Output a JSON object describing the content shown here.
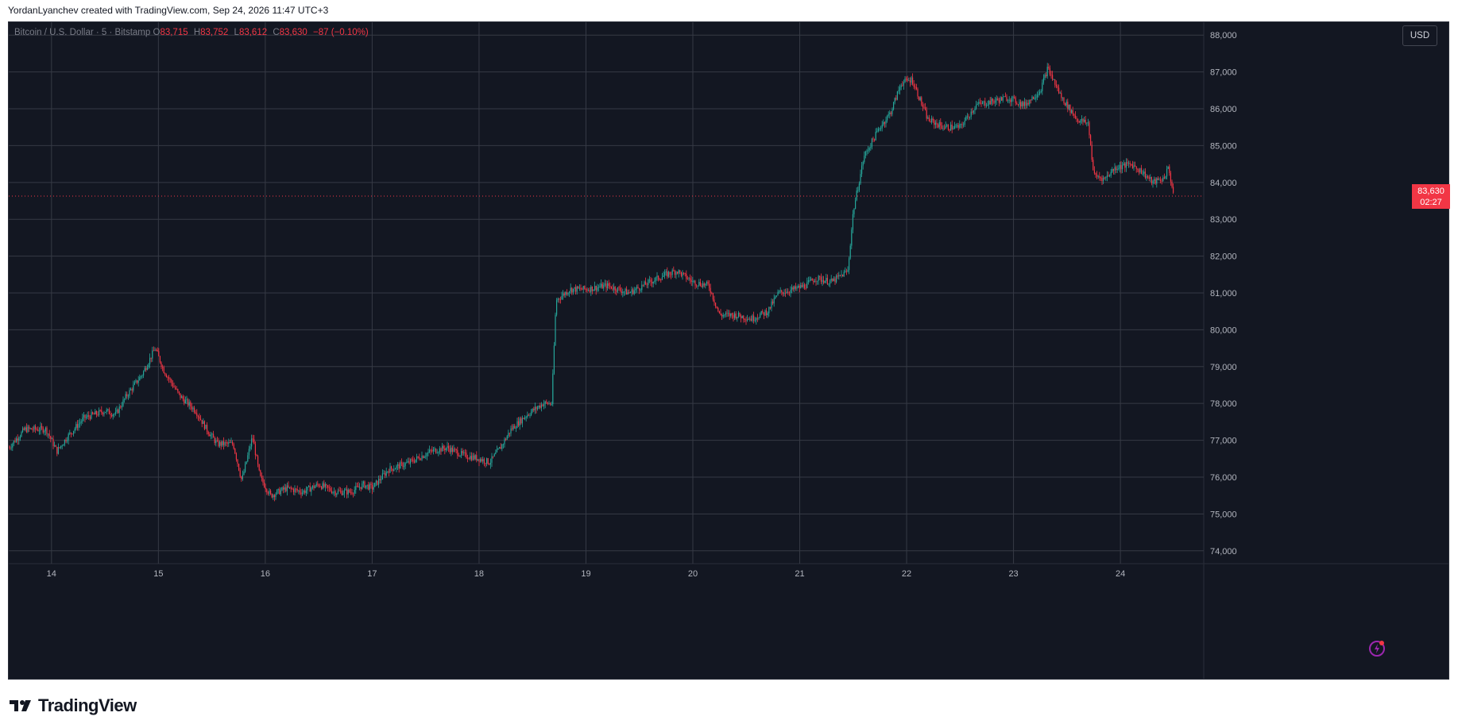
{
  "header": {
    "attribution": "YordanLyanchev created with TradingView.com, Sep 24, 2026 11:47 UTC+3"
  },
  "legend": {
    "symbol": "Bitcoin / U.S. Dollar · 5 · Bitstamp",
    "o_label": "O",
    "o_value": "83,715",
    "h_label": "H",
    "h_value": "83,752",
    "l_label": "L",
    "l_value": "83,612",
    "c_label": "C",
    "c_value": "83,630",
    "change": "−87 (−0.10%)"
  },
  "toolbar": {
    "currency_button": "USD"
  },
  "last_price": {
    "price": "83,630",
    "countdown": "02:27"
  },
  "footer": {
    "brand": "TradingView"
  },
  "icons": {
    "replay": "lightning-icon"
  },
  "colors": {
    "background": "#131722",
    "grid": "#363a45",
    "up": "#26a69a",
    "down": "#f23645",
    "axis_text": "#b2b5be"
  },
  "chart_data": {
    "type": "candlestick",
    "timeframe": "5",
    "exchange": "Bitstamp",
    "x_ticks": [
      "14",
      "15",
      "16",
      "17",
      "18",
      "19",
      "20",
      "21",
      "22",
      "23",
      "24"
    ],
    "y_ticks": [
      "74,000",
      "75,000",
      "76,000",
      "77,000",
      "78,000",
      "79,000",
      "80,000",
      "81,000",
      "82,000",
      "83,000",
      "84,000",
      "85,000",
      "86,000",
      "87,000",
      "88,000"
    ],
    "ylim": [
      73650,
      88350
    ],
    "xlim_days": [
      13.6,
      24.75
    ],
    "grid": true,
    "last_price_value": 83630,
    "price_path": [
      [
        13.6,
        76800
      ],
      [
        13.75,
        77300
      ],
      [
        13.95,
        77300
      ],
      [
        14.05,
        76700
      ],
      [
        14.15,
        77100
      ],
      [
        14.3,
        77600
      ],
      [
        14.5,
        77800
      ],
      [
        14.6,
        77700
      ],
      [
        14.7,
        78200
      ],
      [
        14.85,
        78800
      ],
      [
        14.97,
        79500
      ],
      [
        15.05,
        78900
      ],
      [
        15.2,
        78200
      ],
      [
        15.35,
        77800
      ],
      [
        15.45,
        77300
      ],
      [
        15.55,
        76900
      ],
      [
        15.7,
        76900
      ],
      [
        15.78,
        75900
      ],
      [
        15.88,
        77100
      ],
      [
        15.95,
        76000
      ],
      [
        16.05,
        75500
      ],
      [
        16.2,
        75700
      ],
      [
        16.35,
        75600
      ],
      [
        16.5,
        75800
      ],
      [
        16.65,
        75600
      ],
      [
        16.8,
        75600
      ],
      [
        16.92,
        75800
      ],
      [
        17.0,
        75700
      ],
      [
        17.15,
        76200
      ],
      [
        17.35,
        76400
      ],
      [
        17.55,
        76700
      ],
      [
        17.7,
        76800
      ],
      [
        17.85,
        76600
      ],
      [
        18.0,
        76500
      ],
      [
        18.1,
        76400
      ],
      [
        18.2,
        76800
      ],
      [
        18.3,
        77300
      ],
      [
        18.45,
        77700
      ],
      [
        18.6,
        78000
      ],
      [
        18.68,
        78000
      ],
      [
        18.72,
        80800
      ],
      [
        18.85,
        81100
      ],
      [
        19.0,
        81100
      ],
      [
        19.2,
        81200
      ],
      [
        19.4,
        81000
      ],
      [
        19.6,
        81300
      ],
      [
        19.75,
        81500
      ],
      [
        19.85,
        81600
      ],
      [
        20.0,
        81300
      ],
      [
        20.15,
        81200
      ],
      [
        20.25,
        80400
      ],
      [
        20.4,
        80400
      ],
      [
        20.55,
        80300
      ],
      [
        20.7,
        80500
      ],
      [
        20.8,
        81000
      ],
      [
        20.95,
        81100
      ],
      [
        21.05,
        81200
      ],
      [
        21.15,
        81400
      ],
      [
        21.3,
        81300
      ],
      [
        21.45,
        81600
      ],
      [
        21.5,
        83200
      ],
      [
        21.6,
        84700
      ],
      [
        21.75,
        85500
      ],
      [
        21.85,
        85900
      ],
      [
        21.95,
        86700
      ],
      [
        22.05,
        86800
      ],
      [
        22.2,
        85700
      ],
      [
        22.35,
        85500
      ],
      [
        22.5,
        85500
      ],
      [
        22.65,
        86100
      ],
      [
        22.8,
        86200
      ],
      [
        22.95,
        86300
      ],
      [
        23.1,
        86100
      ],
      [
        23.25,
        86500
      ],
      [
        23.32,
        87100
      ],
      [
        23.45,
        86300
      ],
      [
        23.6,
        85700
      ],
      [
        23.7,
        85600
      ],
      [
        23.75,
        84200
      ],
      [
        23.85,
        84100
      ],
      [
        23.95,
        84400
      ],
      [
        24.1,
        84500
      ],
      [
        24.2,
        84300
      ],
      [
        24.3,
        84000
      ],
      [
        24.4,
        84100
      ],
      [
        24.45,
        84400
      ],
      [
        24.5,
        83630
      ]
    ]
  }
}
